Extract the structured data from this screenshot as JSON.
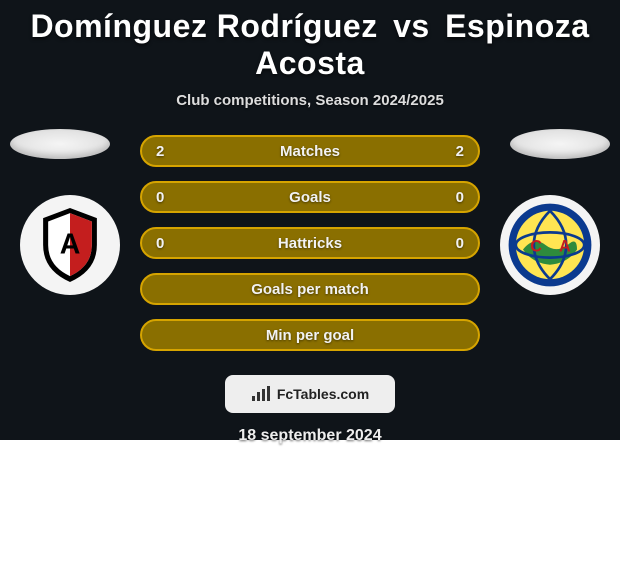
{
  "title": {
    "player_a": "Domínguez Rodríguez",
    "vs": "vs",
    "player_b": "Espinoza Acosta"
  },
  "subtitle": "Club competitions, Season 2024/2025",
  "stats": [
    {
      "label": "Matches",
      "a": "2",
      "b": "2"
    },
    {
      "label": "Goals",
      "a": "0",
      "b": "0"
    },
    {
      "label": "Hattricks",
      "a": "0",
      "b": "0"
    },
    {
      "label": "Goals per match",
      "a": "",
      "b": ""
    },
    {
      "label": "Min per goal",
      "a": "",
      "b": ""
    }
  ],
  "credit": "FcTables.com",
  "date": "18 september 2024",
  "style": {
    "card_bg": "#0f1419",
    "pill_border": "#d6a400",
    "pill_bg": "#8a6f00",
    "pill_text": "#f2f2f2",
    "shield_a": {
      "bg": "#f4f4f4",
      "main": "#000000",
      "accent": "#c41e1e",
      "letter": "A"
    },
    "shield_b": {
      "bg": "#f4f4f4",
      "ring": "#0b3a8f",
      "fill": "#ffe552",
      "land": "#2e8b3d",
      "c": "C",
      "a": "A",
      "band": "#c41e1e"
    }
  }
}
